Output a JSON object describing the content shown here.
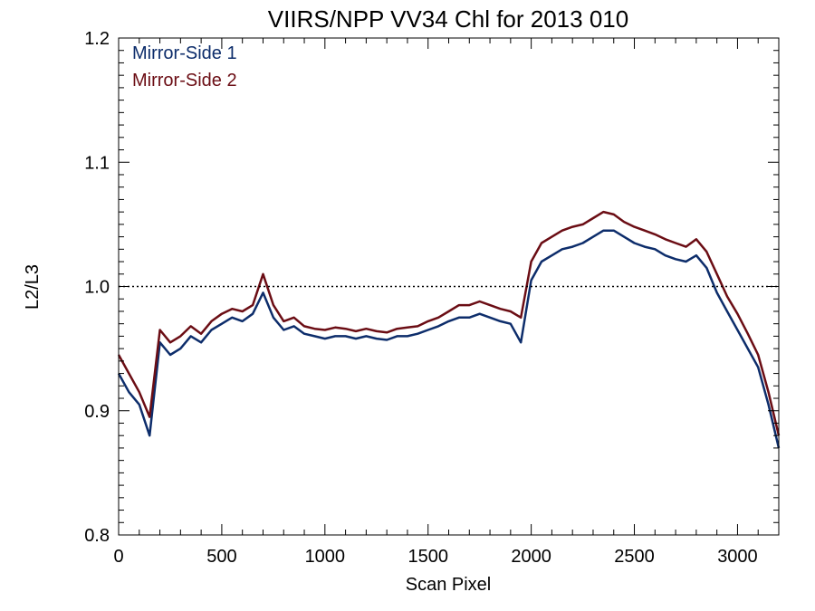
{
  "chart_data": {
    "type": "line",
    "title": "VIIRS/NPP VV34 Chl for 2013 010",
    "xlabel": "Scan Pixel",
    "ylabel": "L2/L3",
    "xlim": [
      0,
      3200
    ],
    "ylim": [
      0.8,
      1.2
    ],
    "x_ticks": [
      0,
      500,
      1000,
      1500,
      2000,
      2500,
      3000
    ],
    "y_ticks": [
      0.8,
      0.9,
      1.0,
      1.1,
      1.2
    ],
    "x_tick_labels": [
      "0",
      "500",
      "1000",
      "1500",
      "2000",
      "2500",
      "3000"
    ],
    "y_tick_labels": [
      "0.8",
      "0.9",
      "1.0",
      "1.1",
      "1.2"
    ],
    "reference_line": {
      "y": 1.0,
      "style": "dotted"
    },
    "grid": false,
    "legend_position": "top-left",
    "x": [
      0,
      50,
      100,
      150,
      200,
      250,
      300,
      350,
      400,
      450,
      500,
      550,
      600,
      650,
      700,
      750,
      800,
      850,
      900,
      950,
      1000,
      1050,
      1100,
      1150,
      1200,
      1250,
      1300,
      1350,
      1400,
      1450,
      1500,
      1550,
      1600,
      1650,
      1700,
      1750,
      1800,
      1850,
      1900,
      1950,
      2000,
      2050,
      2100,
      2150,
      2200,
      2250,
      2300,
      2350,
      2400,
      2450,
      2500,
      2550,
      2600,
      2650,
      2700,
      2750,
      2800,
      2850,
      2900,
      2950,
      3000,
      3050,
      3100,
      3150,
      3200
    ],
    "series": [
      {
        "name": "Mirror-Side 1",
        "color": "#0d2d6b",
        "values": [
          0.93,
          0.915,
          0.905,
          0.88,
          0.955,
          0.945,
          0.95,
          0.96,
          0.955,
          0.965,
          0.97,
          0.975,
          0.972,
          0.978,
          0.995,
          0.975,
          0.965,
          0.968,
          0.962,
          0.96,
          0.958,
          0.96,
          0.96,
          0.958,
          0.96,
          0.958,
          0.957,
          0.96,
          0.96,
          0.962,
          0.965,
          0.968,
          0.972,
          0.975,
          0.975,
          0.978,
          0.975,
          0.972,
          0.97,
          0.955,
          1.005,
          1.02,
          1.025,
          1.03,
          1.032,
          1.035,
          1.04,
          1.045,
          1.045,
          1.04,
          1.035,
          1.032,
          1.03,
          1.025,
          1.022,
          1.02,
          1.025,
          1.015,
          0.995,
          0.98,
          0.965,
          0.95,
          0.935,
          0.905,
          0.87
        ]
      },
      {
        "name": "Mirror-Side 2",
        "color": "#6b0d14",
        "values": [
          0.945,
          0.93,
          0.915,
          0.895,
          0.965,
          0.955,
          0.96,
          0.968,
          0.962,
          0.972,
          0.978,
          0.982,
          0.98,
          0.985,
          1.01,
          0.985,
          0.972,
          0.975,
          0.968,
          0.966,
          0.965,
          0.967,
          0.966,
          0.964,
          0.966,
          0.964,
          0.963,
          0.966,
          0.967,
          0.968,
          0.972,
          0.975,
          0.98,
          0.985,
          0.985,
          0.988,
          0.985,
          0.982,
          0.98,
          0.975,
          1.02,
          1.035,
          1.04,
          1.045,
          1.048,
          1.05,
          1.055,
          1.06,
          1.058,
          1.052,
          1.048,
          1.045,
          1.042,
          1.038,
          1.035,
          1.032,
          1.038,
          1.028,
          1.01,
          0.992,
          0.978,
          0.962,
          0.945,
          0.915,
          0.88
        ]
      }
    ]
  }
}
